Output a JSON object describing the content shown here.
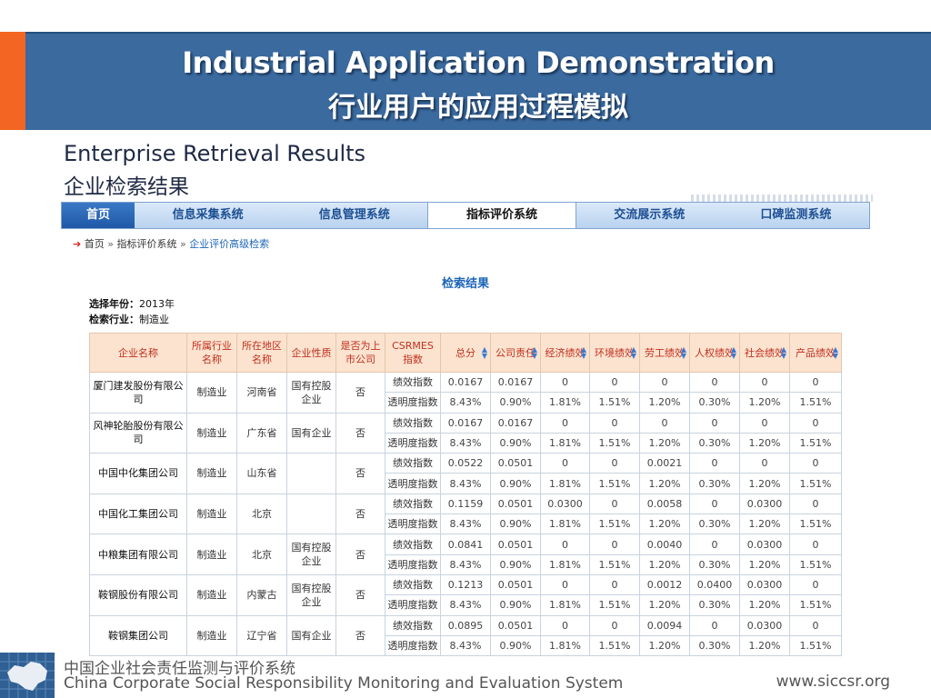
{
  "slide": {
    "title_en": "Industrial Application Demonstration",
    "title_cn": "行业用户的应用过程模拟",
    "subtitle_en": "Enterprise Retrieval Results",
    "subtitle_cn": "企业检索结果"
  },
  "nav": {
    "items": [
      {
        "label": "首页",
        "state": "home"
      },
      {
        "label": "信息采集系统",
        "state": ""
      },
      {
        "label": "信息管理系统",
        "state": ""
      },
      {
        "label": "指标评价系统",
        "state": "active"
      },
      {
        "label": "交流展示系统",
        "state": ""
      },
      {
        "label": "口碑监测系统",
        "state": ""
      }
    ]
  },
  "breadcrumb": {
    "items": [
      "首页",
      "指标评价系统",
      "企业评价高级检索"
    ],
    "separator": "»"
  },
  "results": {
    "title": "检索结果",
    "year_label": "选择年份：",
    "year_value": "2013年",
    "industry_label": "检索行业：",
    "industry_value": "制造业"
  },
  "table": {
    "columns": [
      "企业名称",
      "所属行业名称",
      "所在地区名称",
      "企业性质",
      "是否为上市公司",
      "CSRMES指数",
      "总分",
      "公司责任",
      "经济绩效",
      "环境绩效",
      "劳工绩效",
      "人权绩效",
      "社会绩效",
      "产品绩效"
    ],
    "sortable_from": 6,
    "rows": [
      {
        "name": "厦门建发股份有限公司",
        "industry": "制造业",
        "region": "河南省",
        "nature": "国有控股企业",
        "listed": "否",
        "perf_label": "绩效指数",
        "perf": [
          "0.0167",
          "0.0167",
          "0",
          "0",
          "0",
          "0",
          "0",
          "0"
        ],
        "trans_label": "透明度指数",
        "trans": [
          "8.43%",
          "0.90%",
          "1.81%",
          "1.51%",
          "1.20%",
          "0.30%",
          "1.20%",
          "1.51%"
        ]
      },
      {
        "name": "风神轮胎股份有限公司",
        "industry": "制造业",
        "region": "广东省",
        "nature": "国有企业",
        "listed": "否",
        "perf_label": "绩效指数",
        "perf": [
          "0.0167",
          "0.0167",
          "0",
          "0",
          "0",
          "0",
          "0",
          "0"
        ],
        "trans_label": "透明度指数",
        "trans": [
          "8.43%",
          "0.90%",
          "1.81%",
          "1.51%",
          "1.20%",
          "0.30%",
          "1.20%",
          "1.51%"
        ]
      },
      {
        "name": "中国中化集团公司",
        "industry": "制造业",
        "region": "山东省",
        "nature": "",
        "listed": "否",
        "perf_label": "绩效指数",
        "perf": [
          "0.0522",
          "0.0501",
          "0",
          "0",
          "0.0021",
          "0",
          "0",
          "0"
        ],
        "trans_label": "透明度指数",
        "trans": [
          "8.43%",
          "0.90%",
          "1.81%",
          "1.51%",
          "1.20%",
          "0.30%",
          "1.20%",
          "1.51%"
        ]
      },
      {
        "name": "中国化工集团公司",
        "industry": "制造业",
        "region": "北京",
        "nature": "",
        "listed": "否",
        "perf_label": "绩效指数",
        "perf": [
          "0.1159",
          "0.0501",
          "0.0300",
          "0",
          "0.0058",
          "0",
          "0.0300",
          "0"
        ],
        "trans_label": "透明度指数",
        "trans": [
          "8.43%",
          "0.90%",
          "1.81%",
          "1.51%",
          "1.20%",
          "0.30%",
          "1.20%",
          "1.51%"
        ]
      },
      {
        "name": "中粮集团有限公司",
        "industry": "制造业",
        "region": "北京",
        "nature": "国有控股企业",
        "listed": "否",
        "perf_label": "绩效指数",
        "perf": [
          "0.0841",
          "0.0501",
          "0",
          "0",
          "0.0040",
          "0",
          "0.0300",
          "0"
        ],
        "trans_label": "透明度指数",
        "trans": [
          "8.43%",
          "0.90%",
          "1.81%",
          "1.51%",
          "1.20%",
          "0.30%",
          "1.20%",
          "1.51%"
        ]
      },
      {
        "name": "鞍钢股份有限公司",
        "industry": "制造业",
        "region": "内蒙古",
        "nature": "国有控股企业",
        "listed": "否",
        "perf_label": "绩效指数",
        "perf": [
          "0.1213",
          "0.0501",
          "0",
          "0",
          "0.0012",
          "0.0400",
          "0.0300",
          "0"
        ],
        "trans_label": "透明度指数",
        "trans": [
          "8.43%",
          "0.90%",
          "1.81%",
          "1.51%",
          "1.20%",
          "0.30%",
          "1.20%",
          "1.51%"
        ]
      },
      {
        "name": "鞍钢集团公司",
        "industry": "制造业",
        "region": "辽宁省",
        "nature": "国有企业",
        "listed": "否",
        "perf_label": "绩效指数",
        "perf": [
          "0.0895",
          "0.0501",
          "0",
          "0",
          "0.0094",
          "0",
          "0.0300",
          "0"
        ],
        "trans_label": "透明度指数",
        "trans": [
          "8.43%",
          "0.90%",
          "1.81%",
          "1.51%",
          "1.20%",
          "0.30%",
          "1.20%",
          "1.51%"
        ]
      }
    ]
  },
  "footer": {
    "org_cn": "中国企业社会责任监测与评价系统",
    "org_en": "China Corporate Social Responsibility Monitoring and Evaluation System",
    "url": "www.siccsr.org",
    "logo_icon": "china-map-logo-icon"
  },
  "colors": {
    "banner": "#3a6a9e",
    "accent": "#f26522",
    "header_bg": "#fbe3cf",
    "header_text": "#c0301f",
    "link": "#1b64b8"
  }
}
